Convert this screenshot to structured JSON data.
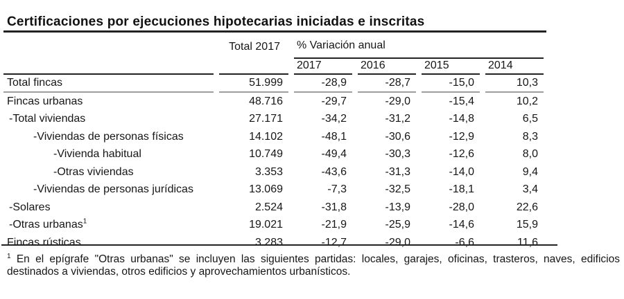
{
  "title": "Certificaciones por ejecuciones hipotecarias iniciadas e inscritas",
  "table": {
    "col_total_label": "Total 2017",
    "col_variation_label": "% Variación anual",
    "year_labels": [
      "2017",
      "2016",
      "2015",
      "2014"
    ],
    "rows": [
      {
        "label": "Total fincas",
        "total": "51.999",
        "values": [
          "-28,9",
          "-28,7",
          "-15,0",
          "10,3"
        ]
      },
      {
        "label": "Fincas urbanas",
        "total": "48.716",
        "values": [
          "-29,7",
          "-29,0",
          "-15,4",
          "10,2"
        ]
      },
      {
        "label": "-Total viviendas",
        "total": "27.171",
        "values": [
          "-34,2",
          "-31,2",
          "-14,8",
          "6,5"
        ]
      },
      {
        "label": "-Viviendas de personas físicas",
        "total": "14.102",
        "values": [
          "-48,1",
          "-30,6",
          "-12,9",
          "8,3"
        ]
      },
      {
        "label": "-Vivienda habitual",
        "total": "10.749",
        "values": [
          "-49,4",
          "-30,3",
          "-12,6",
          "8,0"
        ]
      },
      {
        "label": "-Otras viviendas",
        "total": "3.353",
        "values": [
          "-43,6",
          "-31,3",
          "-14,0",
          "9,4"
        ]
      },
      {
        "label": "-Viviendas de personas jurídicas",
        "total": "13.069",
        "values": [
          "-7,3",
          "-32,5",
          "-18,1",
          "3,4"
        ]
      },
      {
        "label": "-Solares",
        "total": "2.524",
        "values": [
          "-31,8",
          "-13,9",
          "-28,0",
          "22,6"
        ]
      },
      {
        "label": "-Otras urbanas",
        "superscript": "1",
        "total": "19.021",
        "values": [
          "-21,9",
          "-25,9",
          "-14,6",
          "15,9"
        ]
      },
      {
        "label": "Fincas rústicas",
        "total": "3.283",
        "values": [
          "-12,7",
          "-29,0",
          "-6,6",
          "11,6"
        ]
      }
    ]
  },
  "footnote": {
    "marker": "1",
    "text": "En el epígrafe \"Otras urbanas\" se incluyen las siguientes partidas: locales, garajes, oficinas, trasteros, naves, edificios destinados a viviendas, otros edificios y aprovechamientos urbanísticos."
  }
}
